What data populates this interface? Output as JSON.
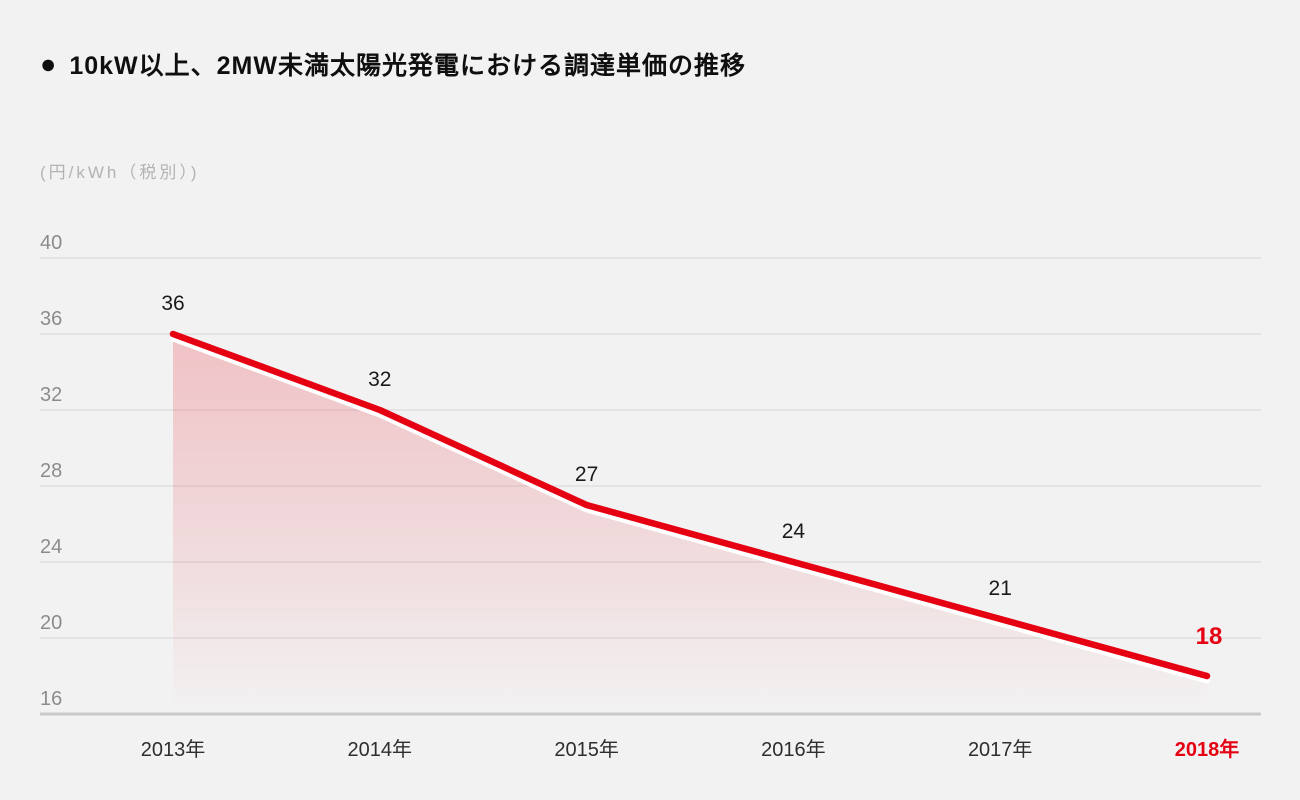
{
  "header": {
    "bullet": "●",
    "title": "10kW以上、2MW未満太陽光発電における調達単価の推移"
  },
  "chart_data": {
    "type": "area",
    "title": "10kW以上、2MW未満太陽光発電における調達単価の推移",
    "unit_label": "(円/kWh（税別）)",
    "categories": [
      "2013年",
      "2014年",
      "2015年",
      "2016年",
      "2017年",
      "2018年"
    ],
    "values": [
      36,
      32,
      27,
      24,
      21,
      18
    ],
    "yticks": [
      40,
      36,
      32,
      28,
      24,
      20,
      16
    ],
    "ylim": [
      16,
      40
    ],
    "grid": true,
    "legend": "none",
    "highlight_index": 5,
    "colors": {
      "background": "#f2f2f2",
      "line": "#e50012",
      "line_understroke": "#ffffff",
      "fill_red": "#e50012",
      "grid": "#e0e0e0",
      "axis_baseline": "#c9c9c9",
      "ytick_text": "#8c8c8c",
      "xtick_text": "#2e2e2e",
      "data_label_text": "#1a1a1a",
      "unit_text": "#b3b3b3",
      "highlight": "#e50012"
    }
  }
}
